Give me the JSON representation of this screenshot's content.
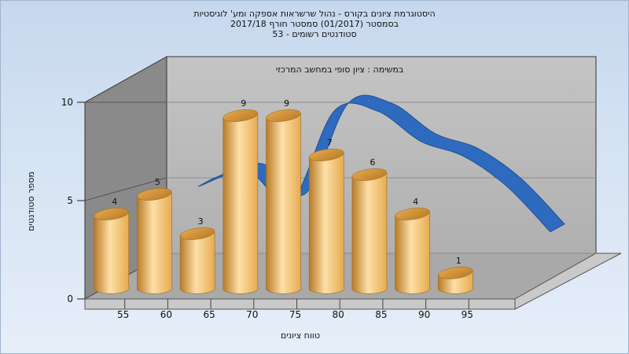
{
  "chart_data": {
    "type": "bar",
    "title": [
      "היסטוגרמת ציונים בקורס - נהול שרשראות אספקה ומע' לוגיסטיות",
      "בסמסטר  (01/2017)  סמסטר חורף 2017/18",
      "סטודנטים רשומים - 53"
    ],
    "annotation": "במשימה : ציון סופי במחשב המרכזי",
    "xlabel": "טווח ציונים",
    "ylabel": "מספר סטודנטים",
    "categories": [
      "55",
      "60",
      "65",
      "70",
      "75",
      "80",
      "85",
      "90",
      "95"
    ],
    "values": [
      4,
      5,
      3,
      9,
      9,
      7,
      6,
      4,
      1
    ],
    "ylim": [
      0,
      10
    ],
    "yticks": [
      "0",
      "5",
      "10"
    ],
    "trend_series": {
      "type": "ribbon",
      "values": [
        4,
        5,
        3,
        9,
        9,
        7,
        6,
        4,
        1
      ]
    },
    "colors": {
      "bar": "#e5a94c",
      "bar_light": "#fde0a8",
      "bar_dark": "#b97a26",
      "ribbon": "#2e6bbf",
      "back_wall": "#b9b9b9",
      "side_wall": "#8a8a8a",
      "floor": "#a9a9a9"
    }
  }
}
